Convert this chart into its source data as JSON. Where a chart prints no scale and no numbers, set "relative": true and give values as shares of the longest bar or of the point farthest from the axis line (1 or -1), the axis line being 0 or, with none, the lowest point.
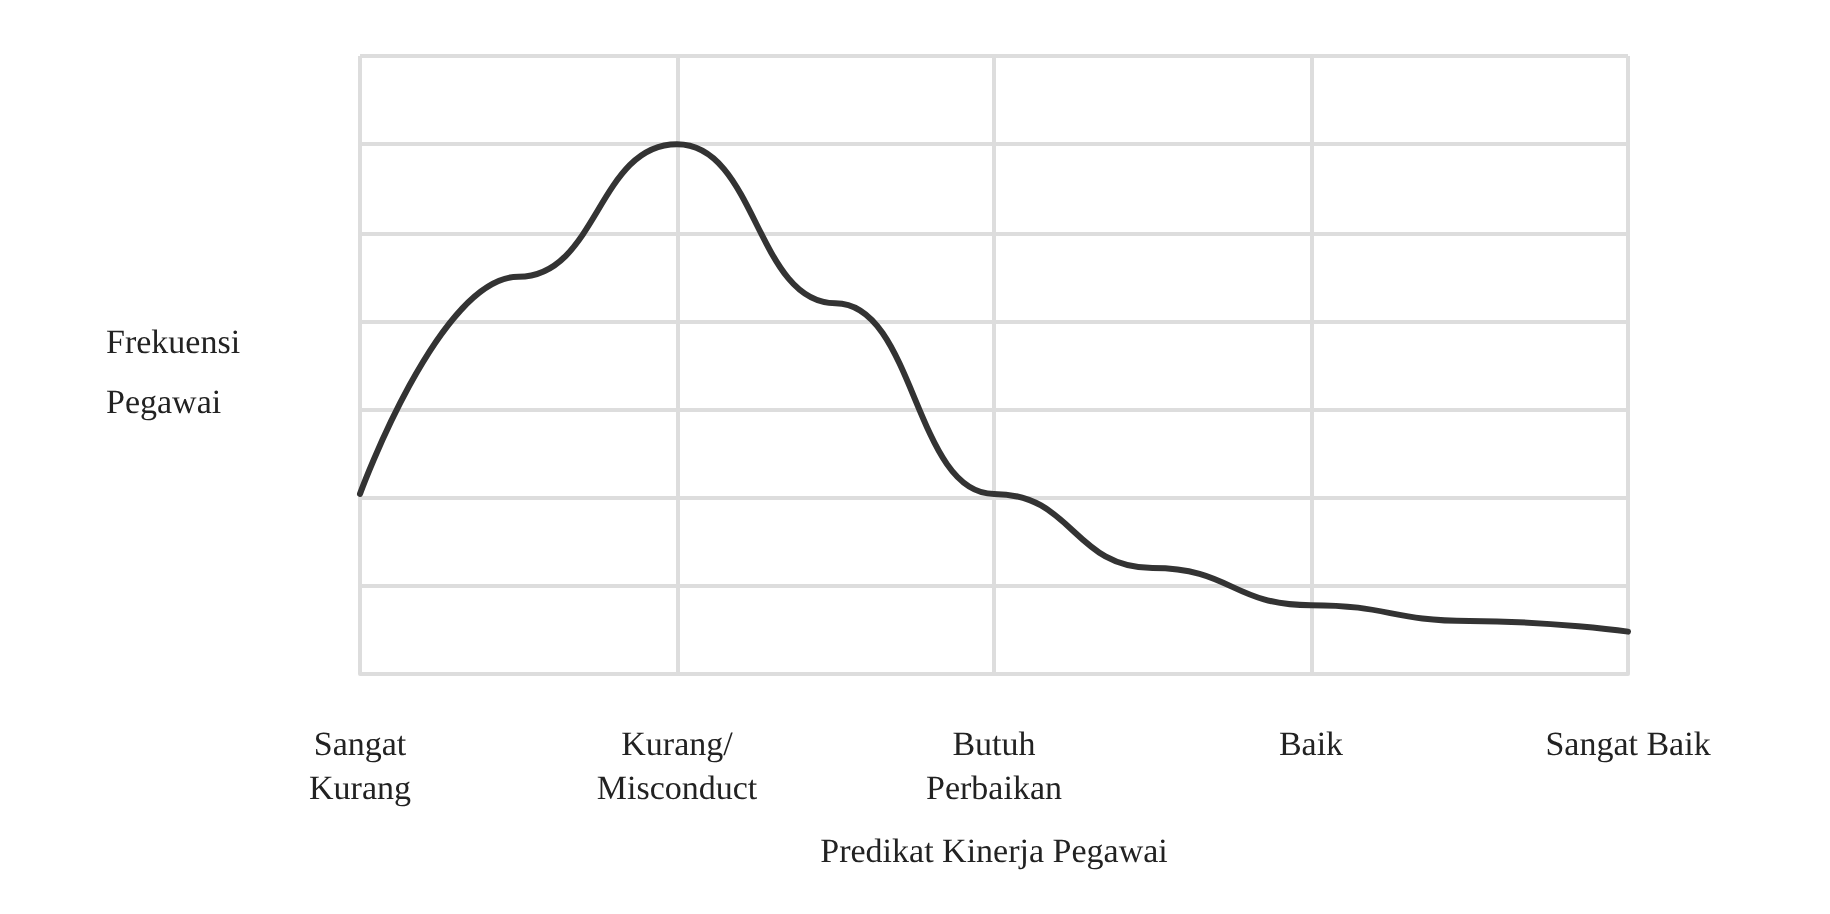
{
  "chart_data": {
    "type": "line",
    "relative": true,
    "xlabel": "Predikat Kinerja Pegawai",
    "ylabel": "Frekuensi\nPegawai",
    "categories": [
      "Sangat\nKurang",
      null,
      "Kurang/\nMisconduct",
      null,
      "Butuh\nPerbaikan",
      null,
      "Baik",
      null,
      "Sangat Baik"
    ],
    "series": [
      {
        "color": "#333333",
        "values": [
          0.34,
          0.75,
          1,
          0.7,
          0.34,
          0.2,
          0.13,
          0.1,
          0.08
        ]
      }
    ],
    "grid": true,
    "marker": "none",
    "line_style": "solid"
  }
}
